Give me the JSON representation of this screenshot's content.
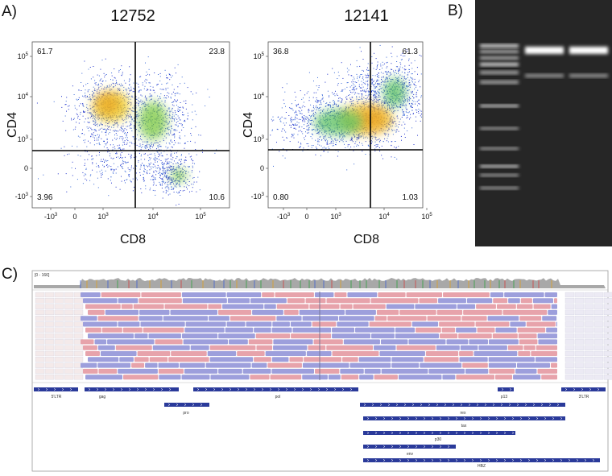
{
  "panels": {
    "a": "A)",
    "b": "B)",
    "c": "C)"
  },
  "flow_plots": [
    {
      "title": "12752",
      "x_label": "CD8",
      "y_label": "CD4",
      "quadrants": {
        "upper_left": "61.7",
        "upper_right": "23.8",
        "lower_left": "3.96",
        "lower_right": "10.6"
      },
      "x_ticks": [
        {
          "base": "-10",
          "exp": "3"
        },
        {
          "base": "0"
        },
        {
          "base": "10",
          "exp": "3"
        },
        {
          "base": "10",
          "exp": "4"
        },
        {
          "base": "10",
          "exp": "5"
        }
      ],
      "y_ticks": [
        {
          "base": "10",
          "exp": "5"
        },
        {
          "base": "10",
          "exp": "4"
        },
        {
          "base": "10",
          "exp": "3"
        },
        {
          "base": "0"
        },
        {
          "base": "-10",
          "exp": "3"
        }
      ]
    },
    {
      "title": "12141",
      "x_label": "CD8",
      "y_label": "CD4",
      "quadrants": {
        "upper_left": "36.8",
        "upper_right": "61.3",
        "lower_left": "0.80",
        "lower_right": "1.03"
      },
      "x_ticks": [
        {
          "base": "-10",
          "exp": "3"
        },
        {
          "base": "0"
        },
        {
          "base": "10",
          "exp": "3"
        },
        {
          "base": "10",
          "exp": "4"
        },
        {
          "base": "10",
          "exp": "5"
        }
      ],
      "y_ticks": [
        {
          "base": "10",
          "exp": "5"
        },
        {
          "base": "10",
          "exp": "4"
        },
        {
          "base": "10",
          "exp": "3"
        },
        {
          "base": "0"
        },
        {
          "base": "-10",
          "exp": "3"
        }
      ]
    }
  ],
  "igv": {
    "coverage_range": "[0 - 166]",
    "features": [
      {
        "label": "5'LTR"
      },
      {
        "label": "gag"
      },
      {
        "label": "pol"
      },
      {
        "label": "p13"
      },
      {
        "label": "3'LTR"
      },
      {
        "label": "pro"
      },
      {
        "label": "rex"
      },
      {
        "label": "tax"
      },
      {
        "label": "p30"
      },
      {
        "label": "env"
      },
      {
        "label": "HBZ"
      }
    ]
  }
}
